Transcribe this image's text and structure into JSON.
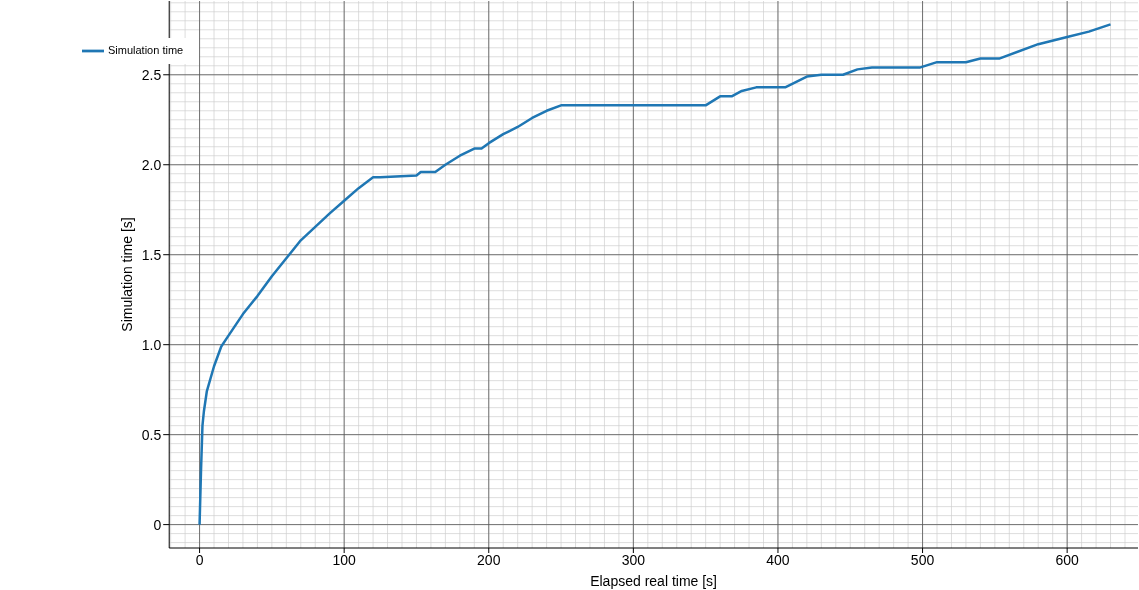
{
  "chart_data": {
    "type": "line",
    "xlabel": "Elapsed real time [s]",
    "ylabel": "Simulation time [s]",
    "x": [
      0,
      1,
      2,
      3,
      5,
      10,
      15,
      20,
      30,
      40,
      50,
      60,
      70,
      90,
      100,
      110,
      120,
      125,
      150,
      153,
      163,
      170,
      180,
      190,
      195,
      200,
      210,
      220,
      230,
      240,
      250,
      255,
      350,
      360,
      368,
      375,
      385,
      405,
      420,
      430,
      445,
      455,
      465,
      498,
      510,
      530,
      540,
      553,
      580,
      600,
      615,
      630
    ],
    "series": [
      {
        "name": "Simulation time",
        "color": "#1f77b4",
        "values": [
          0,
          0.3,
          0.55,
          0.63,
          0.74,
          0.88,
          0.99,
          1.05,
          1.17,
          1.27,
          1.38,
          1.48,
          1.58,
          1.73,
          1.8,
          1.87,
          1.93,
          1.93,
          1.94,
          1.96,
          1.96,
          2.0,
          2.05,
          2.09,
          2.09,
          2.12,
          2.17,
          2.21,
          2.26,
          2.3,
          2.33,
          2.33,
          2.33,
          2.38,
          2.38,
          2.41,
          2.43,
          2.43,
          2.49,
          2.5,
          2.5,
          2.53,
          2.54,
          2.54,
          2.57,
          2.57,
          2.59,
          2.59,
          2.67,
          2.71,
          2.74,
          2.78
        ]
      }
    ],
    "xlim": [
      -21,
      649
    ],
    "ylim": [
      -0.13,
      2.91
    ],
    "xticks": [
      0,
      100,
      200,
      300,
      400,
      500,
      600
    ],
    "yticks": [
      0,
      0.5,
      {
        "value": 1,
        "label": "1.0"
      },
      1.5,
      {
        "value": 2,
        "label": "2.0"
      },
      2.5
    ],
    "grid": true,
    "legend": "top left",
    "marker": "none",
    "line_style": "solid"
  }
}
